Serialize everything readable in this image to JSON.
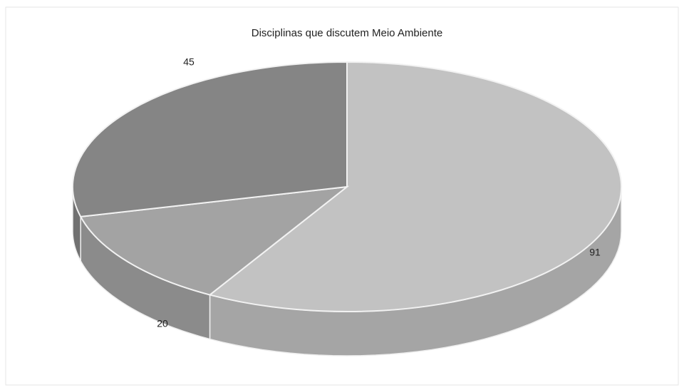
{
  "chart_data": {
    "type": "pie3d",
    "title": "Disciplinas que discutem Meio Ambiente",
    "categories": [
      null,
      null,
      null
    ],
    "values": [
      91,
      20,
      45
    ],
    "colors": [
      "#c2c2c2",
      "#a3a3a3",
      "#858585"
    ]
  }
}
